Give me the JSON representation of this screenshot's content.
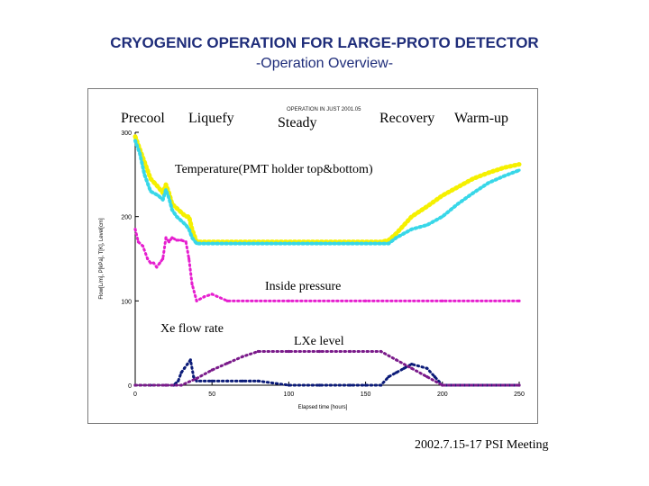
{
  "header": {
    "title": "CRYOGENIC OPERATION FOR LARGE-PROTO DETECTOR",
    "subtitle": "-Operation Overview-"
  },
  "footer": {
    "meeting": "2002.7.15-17 PSI Meeting"
  },
  "chart_data": {
    "type": "scatter",
    "inset_title": "OPERATION IN JUST 2001.05",
    "xlabel": "Elapsed time [hours]",
    "ylabel": "Flow[L/m], P[kPa], T[K], Level[cm]",
    "xlim": [
      0,
      250
    ],
    "ylim": [
      0,
      300
    ],
    "x_ticks": [
      0,
      50,
      100,
      150,
      200,
      250
    ],
    "y_ticks": [
      0,
      100,
      200,
      300
    ],
    "grid": false,
    "phases": [
      "Precool",
      "Liquefy",
      "Steady",
      "Recovery",
      "Warm-up"
    ],
    "annotations": [
      "Temperature(PMT holder top&bottom)",
      "Inside pressure",
      "Xe flow rate",
      "LXe level"
    ],
    "colors": {
      "temp_top": "#f5f000",
      "temp_bottom": "#38d7e8",
      "pressure": "#e61fcf",
      "flow": "#0b1b78",
      "level": "#7a1a8a"
    },
    "series": [
      {
        "key": "temp_top",
        "x": [
          0,
          3,
          6,
          10,
          15,
          18,
          20,
          22,
          24,
          27,
          30,
          33,
          35,
          37,
          40,
          50,
          80,
          100,
          120,
          140,
          160,
          165,
          170,
          175,
          180,
          190,
          200,
          210,
          220,
          230,
          240,
          250
        ],
        "y": [
          295,
          280,
          265,
          245,
          235,
          228,
          238,
          228,
          215,
          210,
          205,
          200,
          200,
          185,
          170,
          170,
          170,
          170,
          170,
          170,
          170,
          172,
          180,
          190,
          200,
          212,
          225,
          235,
          245,
          252,
          258,
          262
        ]
      },
      {
        "key": "temp_bottom",
        "x": [
          0,
          3,
          6,
          10,
          15,
          18,
          20,
          22,
          24,
          27,
          30,
          33,
          35,
          37,
          40,
          50,
          80,
          100,
          120,
          140,
          160,
          165,
          170,
          175,
          180,
          190,
          200,
          210,
          220,
          230,
          240,
          250
        ],
        "y": [
          290,
          275,
          250,
          230,
          225,
          220,
          232,
          222,
          208,
          200,
          195,
          190,
          185,
          175,
          168,
          168,
          168,
          168,
          168,
          168,
          168,
          168,
          175,
          180,
          185,
          190,
          200,
          215,
          228,
          240,
          248,
          255
        ]
      },
      {
        "key": "pressure",
        "x": [
          0,
          2,
          5,
          8,
          10,
          12,
          14,
          16,
          18,
          20,
          22,
          24,
          27,
          30,
          33,
          35,
          37,
          40,
          45,
          50,
          60,
          100,
          150,
          200,
          250
        ],
        "y": [
          185,
          170,
          165,
          150,
          145,
          145,
          140,
          145,
          150,
          175,
          170,
          175,
          172,
          172,
          170,
          150,
          120,
          100,
          105,
          108,
          100,
          100,
          100,
          100,
          100
        ]
      },
      {
        "key": "flow",
        "x": [
          0,
          10,
          20,
          25,
          28,
          30,
          32,
          34,
          36,
          38,
          40,
          50,
          60,
          70,
          75,
          80,
          100,
          120,
          140,
          150,
          160,
          165,
          170,
          175,
          180,
          190,
          195,
          200,
          250
        ],
        "y": [
          0,
          0,
          0,
          0,
          5,
          15,
          20,
          25,
          30,
          10,
          5,
          5,
          5,
          5,
          5,
          5,
          0,
          0,
          0,
          0,
          0,
          10,
          15,
          20,
          25,
          20,
          10,
          0,
          0
        ]
      },
      {
        "key": "level",
        "x": [
          0,
          20,
          30,
          40,
          50,
          60,
          70,
          80,
          100,
          120,
          140,
          160,
          170,
          180,
          190,
          200,
          250
        ],
        "y": [
          0,
          0,
          0,
          8,
          18,
          26,
          34,
          40,
          40,
          40,
          40,
          40,
          30,
          20,
          10,
          0,
          0
        ]
      }
    ]
  }
}
